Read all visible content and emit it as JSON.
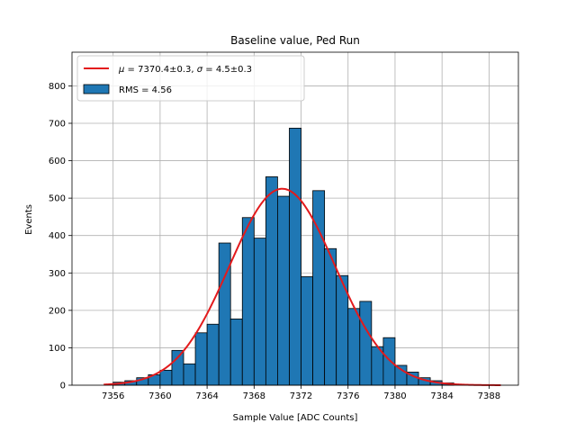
{
  "chart_data": {
    "type": "bar",
    "title": "Baseline value, Ped Run",
    "xlabel": "Sample Value [ADC Counts]",
    "ylabel": "Events",
    "xlim": [
      7352.5,
      7390.5
    ],
    "ylim": [
      0,
      890
    ],
    "xticks": [
      7356,
      7360,
      7364,
      7368,
      7372,
      7376,
      7380,
      7384,
      7388
    ],
    "yticks": [
      0,
      100,
      200,
      300,
      400,
      500,
      600,
      700,
      800
    ],
    "grid": true,
    "legend_position": "top-left",
    "colors": {
      "bar": "#1f77b4",
      "bar_edge": "#000000",
      "fit": "#e31a1c",
      "grid": "#b0b0b0"
    },
    "histogram": {
      "name": "RMS = 4.56",
      "bin_edges": [
        7356,
        7357,
        7358,
        7359,
        7360,
        7361,
        7362,
        7363,
        7364,
        7365,
        7366,
        7367,
        7368,
        7369,
        7370,
        7371,
        7372,
        7373,
        7374,
        7375,
        7376,
        7377,
        7378,
        7379,
        7380,
        7381,
        7382,
        7383,
        7384,
        7385
      ],
      "counts": [
        8,
        12,
        20,
        28,
        40,
        93,
        57,
        140,
        163,
        380,
        177,
        448,
        393,
        557,
        505,
        687,
        290,
        520,
        365,
        293,
        205,
        224,
        103,
        127,
        53,
        35,
        20,
        12,
        6
      ]
    },
    "fit": {
      "name_parts": [
        "μ",
        " = 7370.4±0.3, ",
        "σ",
        " = 4.5±0.3"
      ],
      "mu": 7370.4,
      "sigma": 4.5,
      "amplitude": 525,
      "x_range": [
        7355.2,
        7389
      ]
    },
    "legend": {
      "fit_label": "μ = 7370.4±0.3, σ = 4.5±0.3",
      "hist_label": "RMS = 4.56"
    }
  }
}
